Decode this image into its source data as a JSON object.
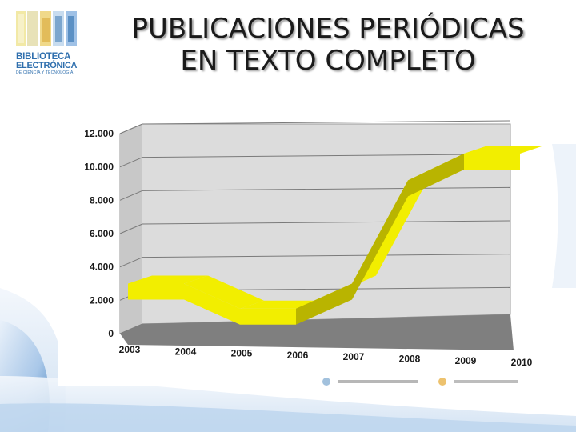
{
  "title": {
    "line1": "PUBLICACIONES PERIÓDICAS",
    "line2": "EN TEXTO COMPLETO"
  },
  "logo": {
    "line1": "BIBLIOTECA",
    "line2": "ELECTRÓNICA",
    "line3": "DE CIENCIA Y TECNOLOGÍA",
    "icon": "library-logo-icon"
  },
  "colors": {
    "series": "#f2ee00",
    "series_shadow": "#b9b400",
    "wall": "#dcdcdc",
    "floor": "#7f7f7f",
    "swoosh": "#2a6db0"
  },
  "chart_data": {
    "type": "line",
    "style": "3d-ribbon",
    "categories": [
      "2003",
      "2004",
      "2005",
      "2006",
      "2007",
      "2008",
      "2009",
      "2010"
    ],
    "series": [
      {
        "values": [
          3000,
          3000,
          1500,
          1500,
          3000,
          9200,
          10800,
          10800
        ]
      }
    ],
    "yticks": [
      "0",
      "2.000",
      "4.000",
      "6.000",
      "8.000",
      "10.000",
      "12.000"
    ],
    "ylim": [
      0,
      12000
    ],
    "grid": true,
    "legend": "none",
    "title": "",
    "xlabel": "",
    "ylabel": ""
  }
}
